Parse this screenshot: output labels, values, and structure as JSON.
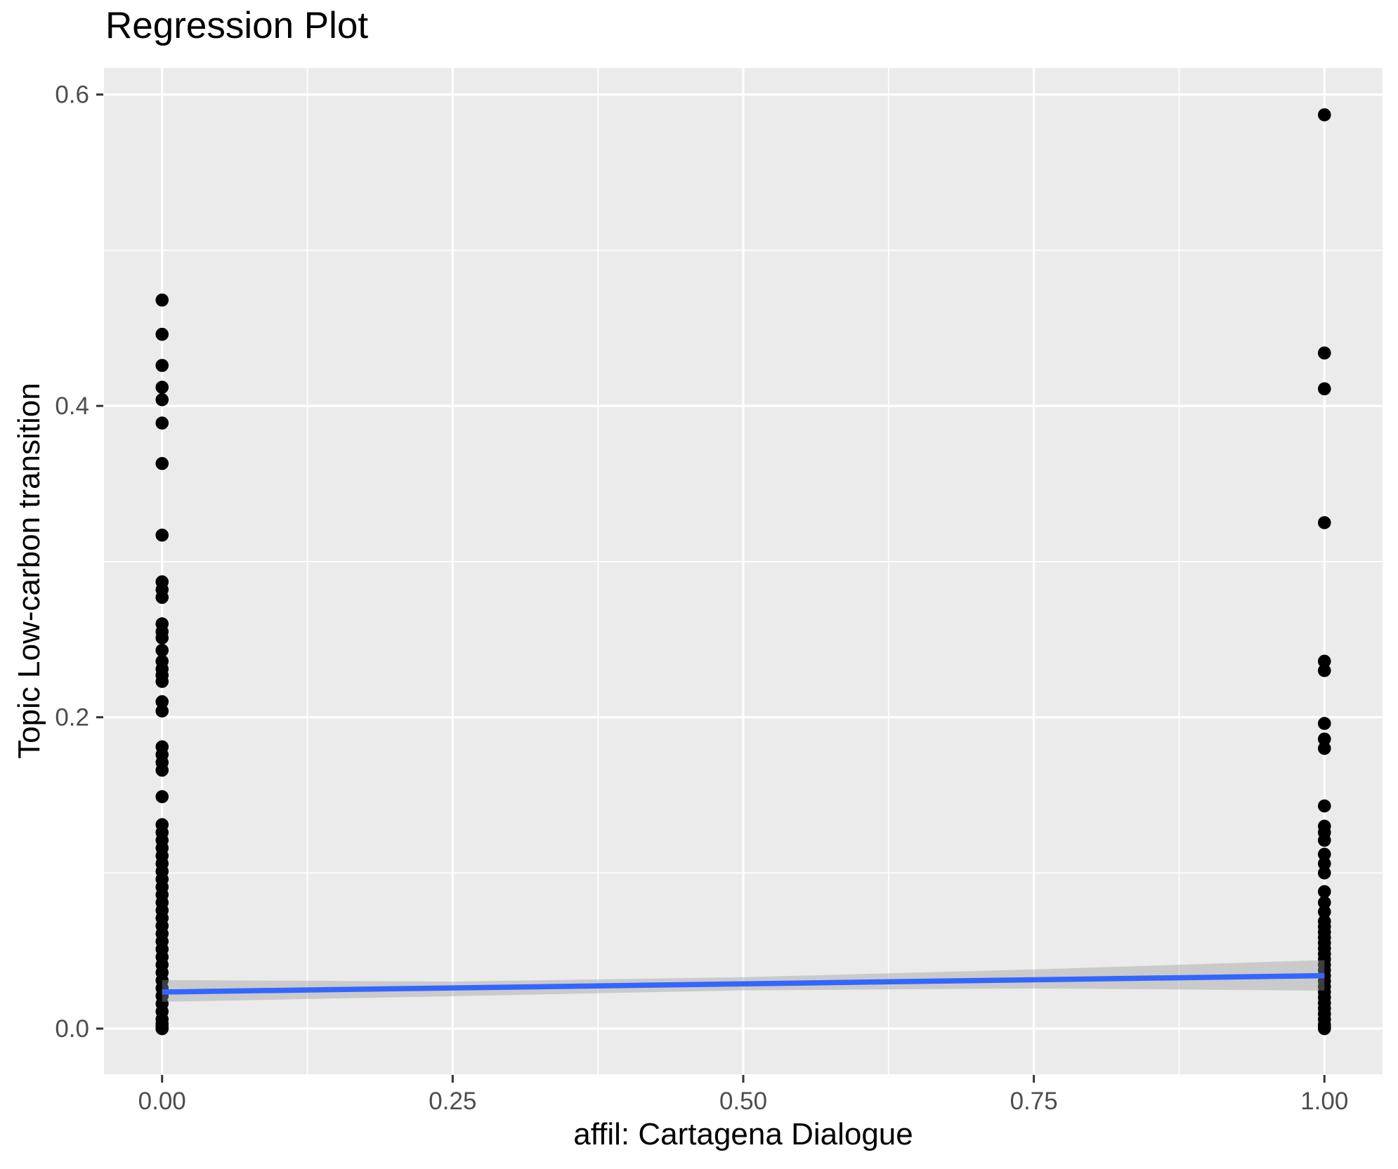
{
  "chart_data": {
    "type": "scatter",
    "title": "Regression Plot",
    "xlabel": "affil: Cartagena Dialogue",
    "ylabel": "Topic Low-carbon transition",
    "xlim": [
      -0.05,
      1.05
    ],
    "ylim": [
      -0.0293,
      0.617
    ],
    "grid": true,
    "legend_position": "none",
    "x_ticks": [
      {
        "value": 0,
        "label": "0.00"
      },
      {
        "value": 0.25,
        "label": "0.25"
      },
      {
        "value": 0.5,
        "label": "0.50"
      },
      {
        "value": 0.75,
        "label": "0.75"
      },
      {
        "value": 1,
        "label": "1.00"
      }
    ],
    "y_ticks": [
      {
        "value": 0,
        "label": "0.0"
      },
      {
        "value": 0.2,
        "label": "0.2"
      },
      {
        "value": 0.4,
        "label": "0.4"
      },
      {
        "value": 0.6,
        "label": "0.6"
      }
    ],
    "x_minor": [
      0.125,
      0.375,
      0.625,
      0.875
    ],
    "y_minor": [
      0.1,
      0.3,
      0.5
    ],
    "series": [
      {
        "name": "affil = 0",
        "x": 0,
        "values": [
          0.468,
          0.446,
          0.426,
          0.412,
          0.404,
          0.389,
          0.363,
          0.317,
          0.287,
          0.282,
          0.277,
          0.26,
          0.255,
          0.251,
          0.243,
          0.236,
          0.231,
          0.227,
          0.223,
          0.21,
          0.204,
          0.181,
          0.176,
          0.171,
          0.166,
          0.149,
          0.131,
          0.126,
          0.121,
          0.116,
          0.111,
          0.106,
          0.101,
          0.096,
          0.091,
          0.086,
          0.081,
          0.076,
          0.071,
          0.066,
          0.061,
          0.056,
          0.051,
          0.046,
          0.041,
          0.036,
          0.031,
          0.026,
          0.021,
          0.016,
          0.011,
          0.006,
          0.003,
          0.001,
          0.0,
          0.0
        ]
      },
      {
        "name": "affil = 1",
        "x": 1,
        "values": [
          0.587,
          0.434,
          0.411,
          0.325,
          0.236,
          0.23,
          0.196,
          0.186,
          0.18,
          0.143,
          0.13,
          0.126,
          0.121,
          0.112,
          0.106,
          0.1,
          0.088,
          0.081,
          0.075,
          0.069,
          0.0655,
          0.062,
          0.0585,
          0.055,
          0.0515,
          0.048,
          0.0445,
          0.041,
          0.0375,
          0.034,
          0.0305,
          0.027,
          0.0235,
          0.02,
          0.0165,
          0.013,
          0.0095,
          0.006,
          0.0025,
          0.001,
          0.0
        ]
      }
    ],
    "regression_line": {
      "x": [
        0,
        1
      ],
      "y": [
        0.0235,
        0.034
      ]
    },
    "confidence_band": {
      "x": [
        0,
        0.25,
        0.5,
        0.75,
        1
      ],
      "upper": [
        0.0312,
        0.0302,
        0.033,
        0.038,
        0.044
      ],
      "lower": [
        0.0172,
        0.0208,
        0.0246,
        0.0258,
        0.0244
      ]
    },
    "colors": {
      "panel_background": "#EBEBEB",
      "gridline": "#FFFFFF",
      "point": "#000000",
      "regression_line": "#3366FF",
      "confidence_band": "rgba(153,153,153,0.4)",
      "tick_label": "#4D4D4D",
      "tick_mark": "#333333",
      "title": "#000000",
      "axis_title": "#000000"
    }
  }
}
